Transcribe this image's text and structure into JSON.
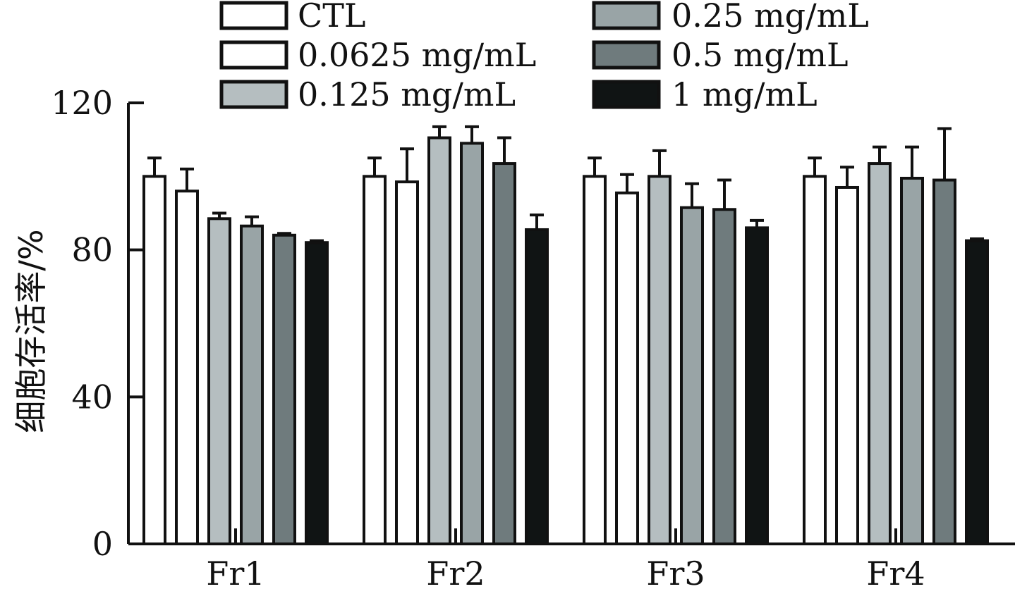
{
  "chart_data": {
    "type": "bar",
    "categories": [
      "Fr1",
      "Fr2",
      "Fr3",
      "Fr4"
    ],
    "series": [
      {
        "name": "CTL",
        "color": "#ffffff",
        "values": [
          100,
          100,
          100,
          100
        ],
        "errors": [
          5,
          5,
          5,
          5
        ]
      },
      {
        "name": "0.0625 mg/mL",
        "color": "#ffffff",
        "values": [
          96,
          98.5,
          95.5,
          97
        ],
        "errors": [
          6,
          9,
          5,
          5.5
        ]
      },
      {
        "name": "0.125 mg/mL",
        "color": "#b5bec0",
        "values": [
          88.5,
          110.5,
          100,
          103.5
        ],
        "errors": [
          1.5,
          3,
          7,
          4.5
        ]
      },
      {
        "name": "0.25 mg/mL",
        "color": "#99a4a6",
        "values": [
          86.5,
          109,
          91.5,
          99.5
        ],
        "errors": [
          2.5,
          4.5,
          6.5,
          8.5
        ]
      },
      {
        "name": "0.5 mg/mL",
        "color": "#6f7b7d",
        "values": [
          84,
          103.5,
          91,
          99
        ],
        "errors": [
          0.5,
          7,
          8,
          14
        ]
      },
      {
        "name": "1 mg/mL",
        "color": "#101414",
        "values": [
          82,
          85.5,
          86,
          82.5
        ],
        "errors": [
          0.5,
          4,
          2,
          0.5
        ]
      }
    ],
    "ylabel": "细胞存活率/%",
    "ylim": [
      0,
      120
    ],
    "yticks": [
      "0",
      "40",
      "80",
      "120"
    ],
    "grid": false,
    "legend": "top"
  }
}
